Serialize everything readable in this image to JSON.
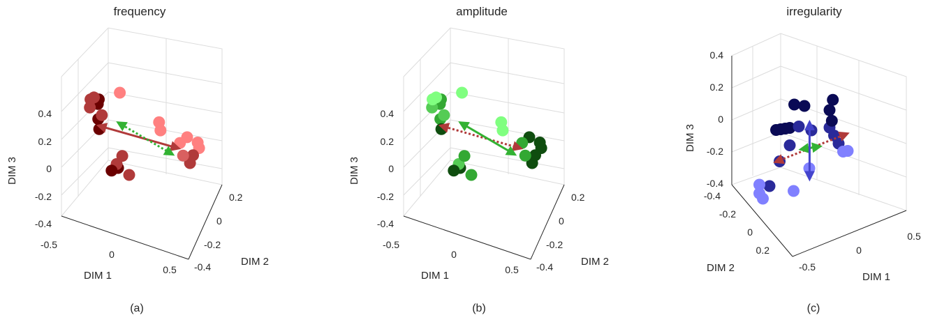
{
  "chart_data": [
    {
      "type": "scatter",
      "subtype": "3d-scatter",
      "title": "frequency",
      "caption": "(a)",
      "xlabel": "DIM 1",
      "ylabel": "DIM 2",
      "zlabel": "DIM 3",
      "xticks": [
        "-0.5",
        "0",
        "0.5"
      ],
      "yticks": [
        "0.2",
        "0",
        "-0.2",
        "-0.4"
      ],
      "zticks": [
        "0.4",
        "0.2",
        "0",
        "-0.2",
        "-0.4"
      ],
      "xlim": [
        -0.6,
        0.6
      ],
      "ylim": [
        -0.4,
        0.3
      ],
      "zlim": [
        -0.4,
        0.4
      ],
      "grid": true,
      "colors": [
        "#6b0000",
        "#b03a3a",
        "#d96060",
        "#ff8080"
      ],
      "arrow_colors": {
        "solid": "#b03a3a",
        "dotted": "#33b233"
      },
      "points": [
        {
          "x": -0.41,
          "y": 0.1,
          "z": 0.42,
          "c": 1
        },
        {
          "x": -0.4,
          "y": 0.05,
          "z": 0.4,
          "c": 1
        },
        {
          "x": -0.44,
          "y": 0.05,
          "z": 0.33,
          "c": 1
        },
        {
          "x": -0.4,
          "y": -0.05,
          "z": 0.32,
          "c": 0
        },
        {
          "x": -0.41,
          "y": -0.05,
          "z": 0.29,
          "c": 0
        },
        {
          "x": -0.37,
          "y": -0.05,
          "z": 0.23,
          "c": 1
        },
        {
          "x": -0.43,
          "y": -0.1,
          "z": 0.16,
          "c": 0
        },
        {
          "x": -0.42,
          "y": -0.1,
          "z": 0.1,
          "c": 0
        },
        {
          "x": -0.12,
          "y": 0.1,
          "z": 0.52,
          "c": 3
        },
        {
          "x": 0.33,
          "y": 0.23,
          "z": 0.52,
          "c": 3
        },
        {
          "x": 0.33,
          "y": 0.2,
          "z": 0.45,
          "c": 3
        },
        {
          "x": 0.44,
          "y": 0.03,
          "z": 0.28,
          "c": 3
        },
        {
          "x": 0.4,
          "y": -0.2,
          "z": 0.15,
          "c": 3
        },
        {
          "x": 0.48,
          "y": -0.25,
          "z": 0.1,
          "c": 3
        },
        {
          "x": 0.47,
          "y": -0.3,
          "z": 0.03,
          "c": 3
        },
        {
          "x": -0.12,
          "y": 0.05,
          "z": 0.1,
          "c": 1
        },
        {
          "x": -0.2,
          "y": 0.0,
          "z": 0.0,
          "c": 1
        },
        {
          "x": -0.25,
          "y": 0.0,
          "z": -0.05,
          "c": 0
        },
        {
          "x": -0.21,
          "y": -0.05,
          "z": -0.06,
          "c": 0
        },
        {
          "x": -0.1,
          "y": -0.05,
          "z": -0.08,
          "c": 1
        },
        {
          "x": 0.36,
          "y": -0.2,
          "z": 0.03,
          "c": 2
        },
        {
          "x": 0.42,
          "y": -0.28,
          "z": -0.01,
          "c": 1
        },
        {
          "x": 0.38,
          "y": -0.3,
          "z": -0.08,
          "c": 1
        }
      ],
      "arrows": [
        {
          "from": [
            -0.43,
            -0.1,
            0.12
          ],
          "to": [
            0.44,
            0.05,
            0.26
          ],
          "style": "solid",
          "color": "#b03a3a"
        },
        {
          "from": [
            -0.13,
            0.12,
            0.35
          ],
          "to": [
            0.25,
            -0.22,
            0.0
          ],
          "style": "dotted",
          "color": "#33b233"
        }
      ]
    },
    {
      "type": "scatter",
      "subtype": "3d-scatter",
      "title": "amplitude",
      "caption": "(b)",
      "xlabel": "DIM 1",
      "ylabel": "DIM 2",
      "zlabel": "DIM 3",
      "xticks": [
        "-0.5",
        "0",
        "0.5"
      ],
      "yticks": [
        "0.2",
        "0",
        "-0.2",
        "-0.4"
      ],
      "zticks": [
        "0.4",
        "0.2",
        "0",
        "-0.2",
        "-0.4"
      ],
      "xlim": [
        -0.6,
        0.6
      ],
      "ylim": [
        -0.4,
        0.3
      ],
      "zlim": [
        -0.4,
        0.4
      ],
      "grid": true,
      "colors": [
        "#0f4d0f",
        "#33a833",
        "#55cc55",
        "#80ff80"
      ],
      "arrow_colors": {
        "solid": "#33b233",
        "dotted": "#b03a3a"
      },
      "points": [
        {
          "x": -0.41,
          "y": 0.1,
          "z": 0.42,
          "c": 3
        },
        {
          "x": -0.4,
          "y": 0.05,
          "z": 0.4,
          "c": 3
        },
        {
          "x": -0.44,
          "y": 0.05,
          "z": 0.33,
          "c": 2
        },
        {
          "x": -0.4,
          "y": -0.05,
          "z": 0.32,
          "c": 1
        },
        {
          "x": -0.41,
          "y": -0.05,
          "z": 0.29,
          "c": 1
        },
        {
          "x": -0.37,
          "y": -0.05,
          "z": 0.23,
          "c": 2
        },
        {
          "x": -0.43,
          "y": -0.1,
          "z": 0.16,
          "c": 1
        },
        {
          "x": -0.42,
          "y": -0.1,
          "z": 0.1,
          "c": 0
        },
        {
          "x": -0.12,
          "y": 0.1,
          "z": 0.52,
          "c": 3
        },
        {
          "x": 0.33,
          "y": 0.23,
          "z": 0.52,
          "c": 3
        },
        {
          "x": 0.33,
          "y": 0.2,
          "z": 0.45,
          "c": 3
        },
        {
          "x": 0.44,
          "y": 0.03,
          "z": 0.28,
          "c": 1
        },
        {
          "x": 0.4,
          "y": -0.2,
          "z": 0.15,
          "c": 0
        },
        {
          "x": 0.48,
          "y": -0.25,
          "z": 0.1,
          "c": 0
        },
        {
          "x": 0.47,
          "y": -0.3,
          "z": 0.03,
          "c": 0
        },
        {
          "x": -0.12,
          "y": 0.05,
          "z": 0.1,
          "c": 1
        },
        {
          "x": -0.2,
          "y": 0.0,
          "z": 0.0,
          "c": 2
        },
        {
          "x": -0.25,
          "y": 0.0,
          "z": -0.05,
          "c": 0
        },
        {
          "x": -0.21,
          "y": -0.05,
          "z": -0.06,
          "c": 0
        },
        {
          "x": -0.1,
          "y": -0.05,
          "z": -0.08,
          "c": 1
        },
        {
          "x": 0.36,
          "y": -0.2,
          "z": 0.03,
          "c": 1
        },
        {
          "x": 0.42,
          "y": -0.28,
          "z": -0.01,
          "c": 0
        },
        {
          "x": 0.38,
          "y": -0.3,
          "z": -0.08,
          "c": 0
        }
      ],
      "arrows": [
        {
          "from": [
            -0.43,
            -0.1,
            0.12
          ],
          "to": [
            0.44,
            0.05,
            0.26
          ],
          "style": "dotted",
          "color": "#b03a3a"
        },
        {
          "from": [
            -0.13,
            0.12,
            0.35
          ],
          "to": [
            0.25,
            -0.22,
            0.0
          ],
          "style": "solid",
          "color": "#33b233"
        }
      ]
    },
    {
      "type": "scatter",
      "subtype": "3d-scatter",
      "title": "irregularity",
      "caption": "(c)",
      "xlabel": "DIM 1",
      "ylabel": "DIM 2",
      "zlabel": "DIM 3",
      "xticks": [
        "-0.5",
        "0",
        "0.5"
      ],
      "yticks": [
        "-0.4",
        "-0.2",
        "0",
        "0.2"
      ],
      "zticks": [
        "0.4",
        "0.2",
        "0",
        "-0.2",
        "-0.4"
      ],
      "xlim": [
        -0.7,
        0.6
      ],
      "ylim": [
        -0.45,
        0.3
      ],
      "zlim": [
        -0.4,
        0.4
      ],
      "grid": true,
      "colors": [
        "#0a0a55",
        "#2a2a9a",
        "#5555d0",
        "#8080ff"
      ],
      "arrow_colors": {
        "dotted": "#b03a3a",
        "green": "#33b233",
        "blue": "#4444cc"
      },
      "points": [
        {
          "x": -0.2,
          "y": -0.05,
          "z": 0.18,
          "c": 0
        },
        {
          "x": -0.25,
          "y": 0.0,
          "z": 0.18,
          "c": 0
        },
        {
          "x": 0.15,
          "y": -0.02,
          "z": 0.18,
          "c": 0
        },
        {
          "x": 0.2,
          "y": 0.05,
          "z": 0.1,
          "c": 0
        },
        {
          "x": 0.25,
          "y": 0.07,
          "z": 0.03,
          "c": 0
        },
        {
          "x": -0.45,
          "y": 0.0,
          "z": 0.05,
          "c": 0
        },
        {
          "x": -0.4,
          "y": 0.0,
          "z": 0.05,
          "c": 0
        },
        {
          "x": -0.35,
          "y": 0.0,
          "z": 0.05,
          "c": 0
        },
        {
          "x": -0.3,
          "y": 0.0,
          "z": 0.05,
          "c": 0
        },
        {
          "x": -0.2,
          "y": 0.0,
          "z": 0.05,
          "c": 1
        },
        {
          "x": 0.0,
          "y": 0.05,
          "z": 0.0,
          "c": 1
        },
        {
          "x": 0.2,
          "y": 0.05,
          "z": 0.0,
          "c": 1
        },
        {
          "x": 0.25,
          "y": 0.05,
          "z": -0.05,
          "c": 1
        },
        {
          "x": -0.3,
          "y": 0.0,
          "z": -0.05,
          "c": 1
        },
        {
          "x": 0.3,
          "y": 0.05,
          "z": -0.1,
          "c": 1
        },
        {
          "x": -0.35,
          "y": 0.05,
          "z": -0.15,
          "c": 1
        },
        {
          "x": 0.35,
          "y": 0.05,
          "z": -0.15,
          "c": 3
        },
        {
          "x": 0.4,
          "y": 0.05,
          "z": -0.15,
          "c": 3
        },
        {
          "x": 0.1,
          "y": 0.15,
          "z": -0.25,
          "c": 3
        },
        {
          "x": -0.45,
          "y": 0.15,
          "z": -0.3,
          "c": 3
        },
        {
          "x": -0.4,
          "y": 0.1,
          "z": -0.3,
          "c": 1
        },
        {
          "x": -0.45,
          "y": 0.15,
          "z": -0.35,
          "c": 3
        },
        {
          "x": -0.35,
          "y": 0.2,
          "z": -0.4,
          "c": 3
        },
        {
          "x": 0.05,
          "y": 0.25,
          "z": -0.4,
          "c": 3
        }
      ],
      "arrows": [
        {
          "from": [
            0.4,
            0.05,
            -0.05
          ],
          "to": [
            -0.4,
            0.05,
            -0.15
          ],
          "style": "dotted",
          "color": "#b03a3a"
        },
        {
          "from": [
            -0.12,
            0.05,
            -0.1
          ],
          "to": [
            0.1,
            0.05,
            -0.1
          ],
          "style": "solid",
          "color": "#33b233"
        },
        {
          "from": [
            -0.02,
            0.05,
            0.05
          ],
          "to": [
            -0.02,
            0.05,
            -0.28
          ],
          "style": "solid",
          "color": "#4444cc"
        }
      ]
    }
  ]
}
